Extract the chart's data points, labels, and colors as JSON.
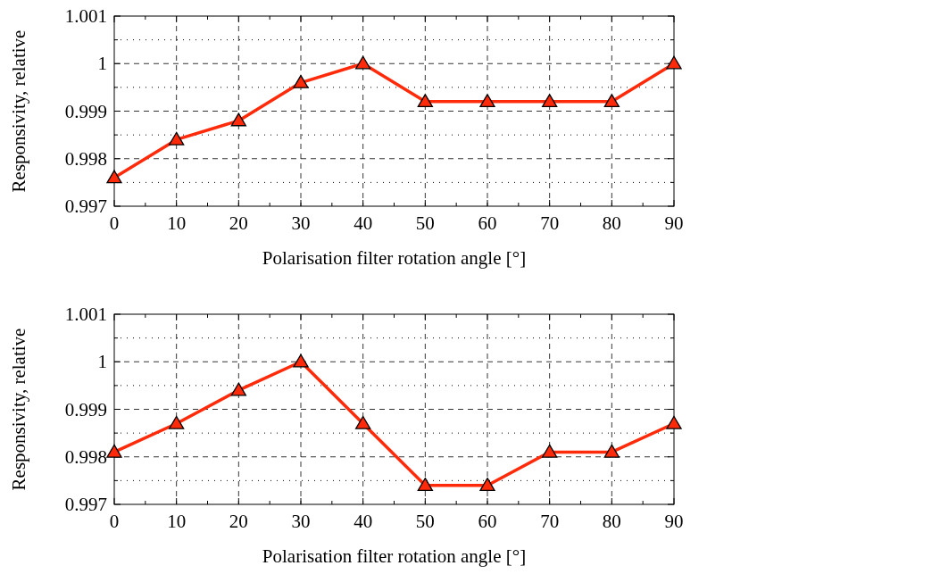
{
  "chart_data": [
    {
      "type": "line",
      "xlabel": "Polarisation filter rotation angle [°]",
      "ylabel": "Responsivity, relative",
      "x": [
        0,
        10,
        20,
        30,
        40,
        50,
        60,
        70,
        80,
        90
      ],
      "series": [
        {
          "color": "#ff2a0a",
          "values": [
            0.9976,
            0.9984,
            0.9988,
            0.9996,
            1,
            0.9992,
            0.9992,
            0.9992,
            0.9992,
            1
          ]
        }
      ],
      "xlim": [
        0,
        90
      ],
      "ylim": [
        0.997,
        1.001
      ],
      "xticks": [
        0,
        {
          "value": 5,
          "label": null
        },
        10,
        {
          "value": 15,
          "label": null
        },
        20,
        {
          "value": 25,
          "label": null
        },
        30,
        {
          "value": 35,
          "label": null
        },
        40,
        {
          "value": 45,
          "label": null
        },
        50,
        {
          "value": 55,
          "label": null
        },
        60,
        {
          "value": 65,
          "label": null
        },
        70,
        {
          "value": 75,
          "label": null
        },
        80,
        {
          "value": 85,
          "label": null
        },
        90
      ],
      "yticks": [
        0.997,
        {
          "value": 0.9975,
          "label": null
        },
        0.998,
        {
          "value": 0.9985,
          "label": null
        },
        0.999,
        {
          "value": 0.9995,
          "label": null
        },
        1,
        {
          "value": 1.0005,
          "label": null
        },
        1.001
      ],
      "grid": true,
      "marker": "triangle",
      "line_style": "solid"
    },
    {
      "type": "line",
      "xlabel": "Polarisation filter rotation angle [°]",
      "ylabel": "Responsivity, relative",
      "x": [
        0,
        10,
        20,
        30,
        40,
        50,
        60,
        70,
        80,
        90
      ],
      "series": [
        {
          "color": "#ff2a0a",
          "values": [
            0.9981,
            0.9987,
            0.9994,
            1,
            0.9987,
            0.9974,
            0.9974,
            0.9981,
            0.9981,
            0.9987
          ]
        }
      ],
      "xlim": [
        0,
        90
      ],
      "ylim": [
        0.997,
        1.001
      ],
      "xticks": [
        0,
        {
          "value": 5,
          "label": null
        },
        10,
        {
          "value": 15,
          "label": null
        },
        20,
        {
          "value": 25,
          "label": null
        },
        30,
        {
          "value": 35,
          "label": null
        },
        40,
        {
          "value": 45,
          "label": null
        },
        50,
        {
          "value": 55,
          "label": null
        },
        60,
        {
          "value": 65,
          "label": null
        },
        70,
        {
          "value": 75,
          "label": null
        },
        80,
        {
          "value": 85,
          "label": null
        },
        90
      ],
      "yticks": [
        0.997,
        {
          "value": 0.9975,
          "label": null
        },
        0.998,
        {
          "value": 0.9985,
          "label": null
        },
        0.999,
        {
          "value": 0.9995,
          "label": null
        },
        1,
        {
          "value": 1.0005,
          "label": null
        },
        1.001
      ],
      "grid": true,
      "marker": "triangle",
      "line_style": "solid"
    }
  ]
}
